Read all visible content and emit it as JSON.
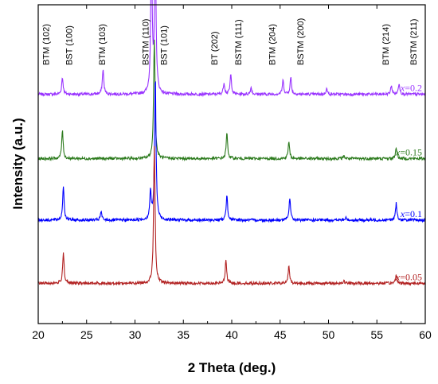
{
  "chart_data": {
    "type": "line",
    "title": "",
    "xlabel": "2 Theta (deg.)",
    "ylabel": "Intensity (a.u.)",
    "xlim": [
      20,
      60
    ],
    "xticks": [
      "20",
      "25",
      "30",
      "35",
      "40",
      "45",
      "50",
      "55",
      "60"
    ],
    "yticks_shown": false,
    "grid": false,
    "peak_labels": [
      {
        "text": "BTM (102)",
        "x": 21.1
      },
      {
        "text": "BST (100)",
        "x": 23.5
      },
      {
        "text": "BTM (103)",
        "x": 26.9
      },
      {
        "text": "BSTM (110)",
        "x": 31.4
      },
      {
        "text": "BST (101)",
        "x": 33.3
      },
      {
        "text": "BT (202)",
        "x": 38.5
      },
      {
        "text": "BSTM (111)",
        "x": 41.0
      },
      {
        "text": "BTM (204)",
        "x": 44.5
      },
      {
        "text": "BSTM (200)",
        "x": 47.4
      },
      {
        "text": "BTM (214)",
        "x": 56.2
      },
      {
        "text": "BSTM (211)",
        "x": 59.1
      }
    ],
    "series": [
      {
        "x_prefix": "x",
        "x_value": "=0.2",
        "color": "#9933ff",
        "baseline": 4.1,
        "peaks": [
          [
            22.5,
            0.3
          ],
          [
            26.7,
            0.45
          ],
          [
            31.7,
            2.5
          ],
          [
            32.1,
            2.6
          ],
          [
            39.2,
            0.2
          ],
          [
            39.9,
            0.35
          ],
          [
            42.0,
            0.12
          ],
          [
            45.3,
            0.25
          ],
          [
            46.1,
            0.3
          ],
          [
            49.8,
            0.1
          ],
          [
            56.5,
            0.15
          ],
          [
            57.3,
            0.2
          ]
        ]
      },
      {
        "x_prefix": "x",
        "x_value": "=0.15",
        "color": "#2b7a1c",
        "baseline": 2.95,
        "peaks": [
          [
            22.5,
            0.5
          ],
          [
            32.0,
            2.15
          ],
          [
            39.5,
            0.45
          ],
          [
            45.9,
            0.3
          ],
          [
            51.6,
            0.05
          ],
          [
            57.0,
            0.2
          ]
        ]
      },
      {
        "x_prefix": "x",
        "x_value": "=0.1",
        "color": "#0000ff",
        "baseline": 1.85,
        "peaks": [
          [
            22.6,
            0.6
          ],
          [
            26.5,
            0.15
          ],
          [
            31.6,
            0.5
          ],
          [
            32.1,
            2.55
          ],
          [
            39.5,
            0.45
          ],
          [
            46.0,
            0.4
          ],
          [
            51.8,
            0.04
          ],
          [
            57.0,
            0.3
          ]
        ]
      },
      {
        "x_prefix": "x",
        "x_value": "=0.05",
        "color": "#b22222",
        "baseline": 0.72,
        "peaks": [
          [
            22.6,
            0.55
          ],
          [
            32.0,
            2.45
          ],
          [
            39.4,
            0.4
          ],
          [
            45.9,
            0.3
          ],
          [
            51.6,
            0.04
          ],
          [
            57.0,
            0.15
          ]
        ]
      }
    ]
  }
}
